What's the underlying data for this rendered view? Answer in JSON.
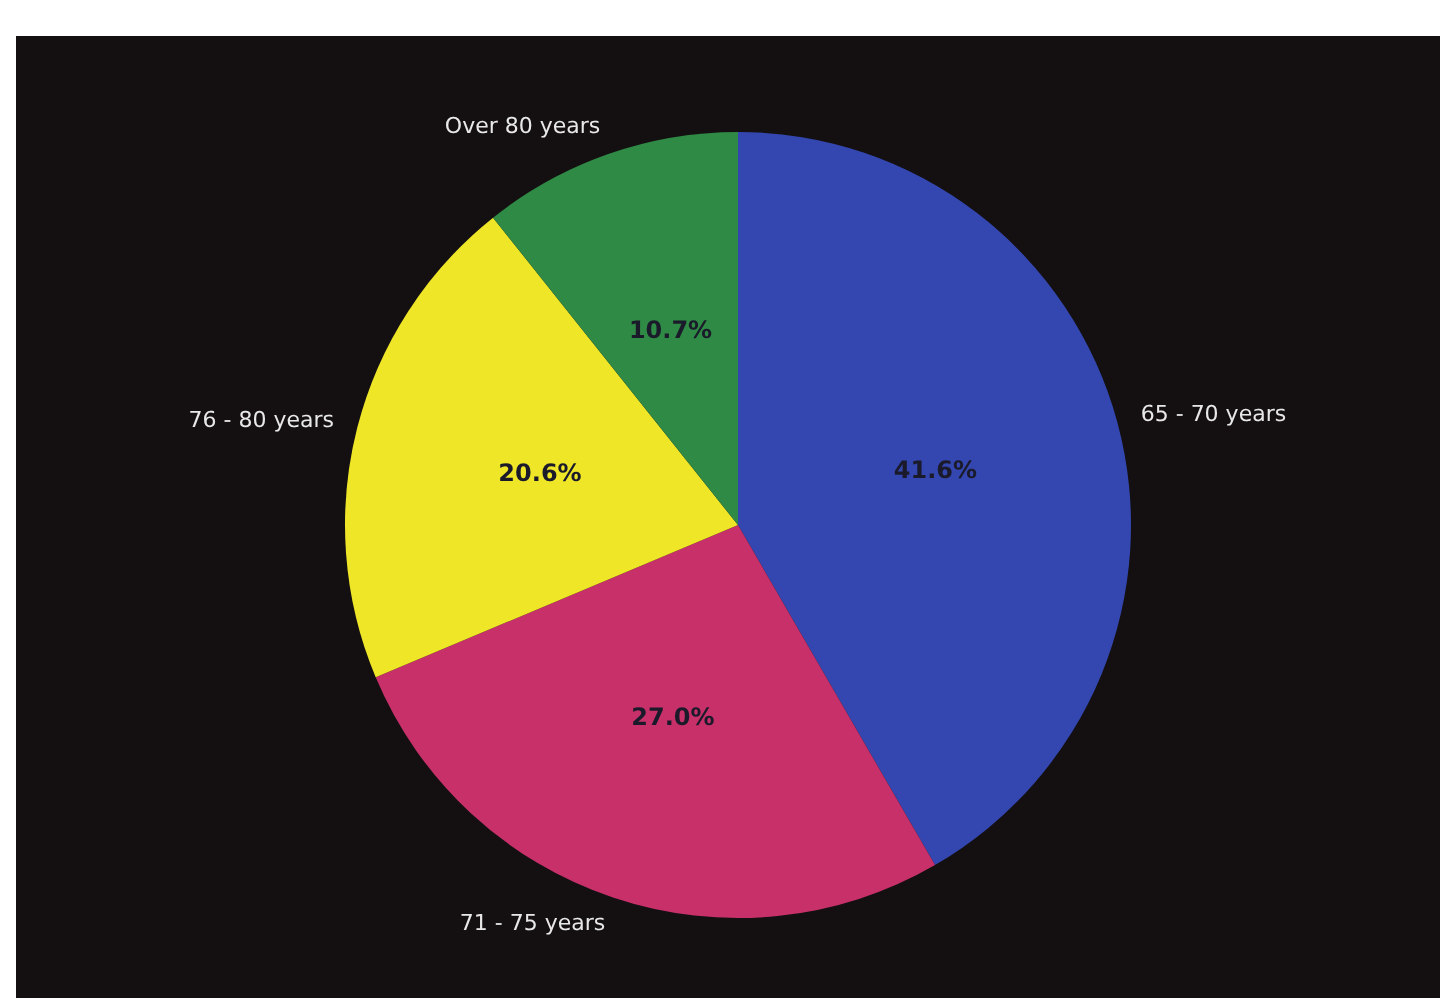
{
  "chart_data": {
    "type": "pie",
    "categories": [
      "65 - 70 years",
      "71 - 75 years",
      "76 - 80 years",
      "Over 80 years"
    ],
    "values": [
      41.6,
      27.0,
      20.6,
      10.7
    ],
    "value_labels": [
      "41.6%",
      "27.0%",
      "20.6%",
      "10.7%"
    ],
    "colors": [
      "#3447b0",
      "#c8306a",
      "#f0e628",
      "#2f8a45"
    ],
    "legend": false
  }
}
